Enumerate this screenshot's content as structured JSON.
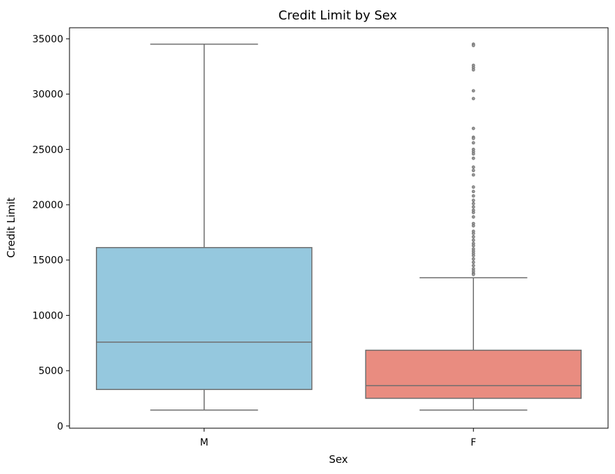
{
  "chart_data": {
    "type": "box",
    "title": "Credit Limit by Sex",
    "xlabel": "Sex",
    "ylabel": "Credit Limit",
    "ylim": [
      -200,
      36000
    ],
    "yticks": [
      0,
      5000,
      10000,
      15000,
      20000,
      25000,
      30000,
      35000
    ],
    "grid": false,
    "categories": [
      "M",
      "F"
    ],
    "boxes": [
      {
        "category": "M",
        "color": "#95C8DE",
        "whisker_low": 1438,
        "q1": 3300,
        "median": 7580,
        "q3": 16130,
        "whisker_high": 34516,
        "outliers": []
      },
      {
        "category": "F",
        "color": "#E98C80",
        "whisker_low": 1438,
        "q1": 2500,
        "median": 3650,
        "q3": 6850,
        "whisker_high": 13400,
        "outliers": [
          34516,
          34400,
          32600,
          32400,
          32200,
          30300,
          29600,
          26900,
          26100,
          26000,
          25600,
          25000,
          24800,
          24600,
          24200,
          23400,
          23100,
          22700,
          21600,
          21200,
          20800,
          20400,
          20100,
          19800,
          19500,
          19300,
          18900,
          18300,
          18100,
          17600,
          17400,
          17100,
          16800,
          16500,
          16300,
          16000,
          15800,
          15600,
          15400,
          15100,
          14800,
          14500,
          14200,
          14000,
          13800,
          13700
        ]
      }
    ],
    "line_color": "#6E6E6E"
  }
}
